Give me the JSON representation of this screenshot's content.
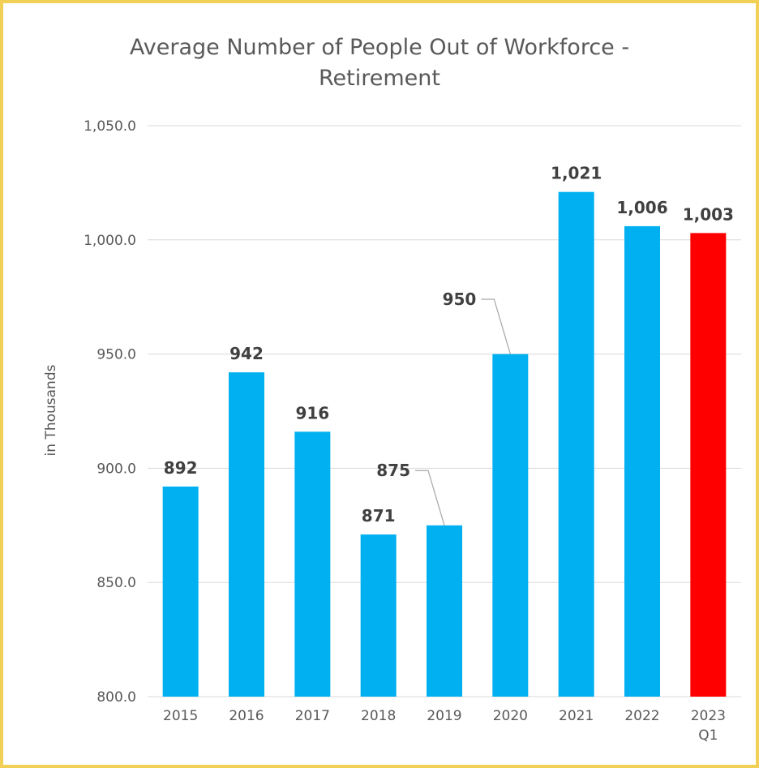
{
  "chart_data": {
    "type": "bar",
    "title": [
      "Average Number of People Out of Workforce -",
      "Retirement"
    ],
    "ylabel": "in Thousands",
    "xlabel": "",
    "categories": [
      [
        "2015"
      ],
      [
        "2016"
      ],
      [
        "2017"
      ],
      [
        "2018"
      ],
      [
        "2019"
      ],
      [
        "2020"
      ],
      [
        "2021"
      ],
      [
        "2022"
      ],
      [
        "2023",
        "Q1"
      ]
    ],
    "values": [
      892,
      942,
      916,
      871,
      875,
      950,
      1021,
      1006,
      1003
    ],
    "data_labels": [
      "892",
      "942",
      "916",
      "871",
      "875",
      "950",
      "1,021",
      "1,006",
      "1,003"
    ],
    "ylim": [
      800,
      1050
    ],
    "yticks": [
      800,
      850,
      900,
      950,
      1000,
      1050
    ],
    "ytick_labels": [
      "800.0",
      "850.0",
      "900.0",
      "950.0",
      "1,000.0",
      "1,050.0"
    ],
    "grid": true,
    "legend": "none",
    "colors": {
      "bar": "#00b0f0",
      "highlight": "#ff0000",
      "border": "#f2cf55"
    },
    "highlight_index": 8
  }
}
